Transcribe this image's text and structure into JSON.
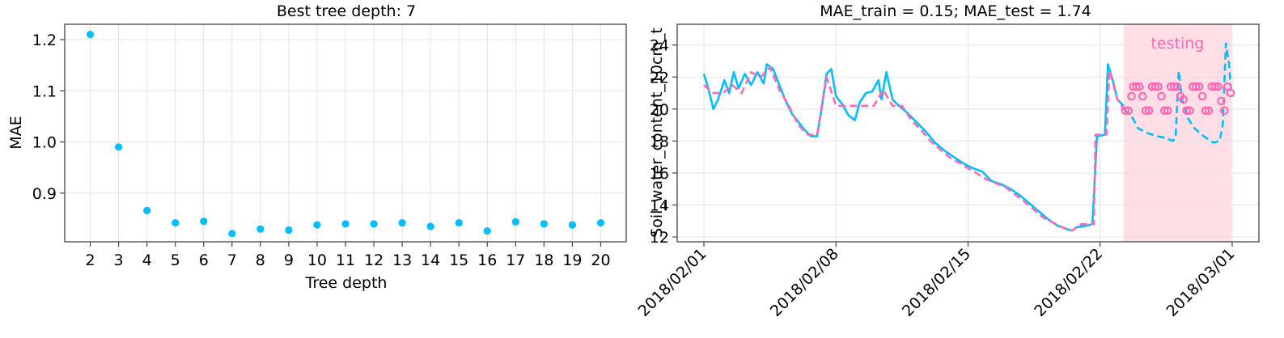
{
  "chart_data": [
    {
      "type": "scatter",
      "title": "Best tree depth: 7",
      "xlabel": "Tree depth",
      "ylabel": "MAE",
      "x": [
        2,
        3,
        4,
        5,
        6,
        7,
        8,
        9,
        10,
        11,
        12,
        13,
        14,
        15,
        16,
        17,
        18,
        19,
        20
      ],
      "y": [
        1.21,
        0.99,
        0.866,
        0.842,
        0.845,
        0.821,
        0.83,
        0.828,
        0.838,
        0.84,
        0.84,
        0.842,
        0.835,
        0.842,
        0.826,
        0.844,
        0.84,
        0.838,
        0.842
      ],
      "xticks": [
        "2",
        "3",
        "4",
        "5",
        "6",
        "7",
        "8",
        "9",
        "10",
        "11",
        "12",
        "13",
        "14",
        "15",
        "16",
        "17",
        "18",
        "19",
        "20"
      ],
      "yticks": [
        "0.9",
        "1.0",
        "1.1",
        "1.2"
      ],
      "ytick_values": [
        0.9,
        1.0,
        1.1,
        1.2
      ],
      "xlim": [
        1.1,
        20.9
      ],
      "ylim": [
        0.805,
        1.23
      ],
      "grid": true,
      "color": "#00BFFF"
    },
    {
      "type": "line",
      "title": "MAE_train = 0.15; MAE_test = 1.74",
      "xlabel": "",
      "ylabel": "Soil_water_content_10cm_t",
      "xticks": [
        "2018/02/01",
        "2018/02/08",
        "2018/02/15",
        "2018/02/22",
        "2018/03/01"
      ],
      "xtick_dates": [
        "2018-02-01",
        "2018-02-08",
        "2018-02-15",
        "2018-02-22",
        "2018-03-01"
      ],
      "yticks": [
        "12",
        "14",
        "16",
        "18",
        "20",
        "22",
        "24"
      ],
      "ytick_values": [
        12,
        14,
        16,
        18,
        20,
        22,
        24
      ],
      "xlim": [
        "2018-01-30 14:00",
        "2018-03-02 10:00"
      ],
      "ylim": [
        11.7,
        25.3
      ],
      "grid": true,
      "shaded_region": {
        "label": "testing",
        "start": "2018-02-23 06:00",
        "end": "2018-02-28 23:00",
        "color": "#FFB6C8"
      },
      "series": [
        {
          "style": "solid",
          "color": "#00BFFF",
          "points": [
            [
              "2018-02-01 00:00",
              22.2
            ],
            [
              "2018-02-01 06:00",
              21.2
            ],
            [
              "2018-02-01 12:00",
              20.0
            ],
            [
              "2018-02-01 18:00",
              20.6
            ],
            [
              "2018-02-02 02:00",
              21.8
            ],
            [
              "2018-02-02 08:00",
              21.0
            ],
            [
              "2018-02-02 14:00",
              22.3
            ],
            [
              "2018-02-02 20:00",
              21.3
            ],
            [
              "2018-02-03 04:00",
              22.2
            ],
            [
              "2018-02-03 12:00",
              21.5
            ],
            [
              "2018-02-03 20:00",
              22.3
            ],
            [
              "2018-02-04 04:00",
              21.6
            ],
            [
              "2018-02-04 08:00",
              22.8
            ],
            [
              "2018-02-04 16:00",
              22.5
            ],
            [
              "2018-02-05 00:00",
              21.5
            ],
            [
              "2018-02-05 08:00",
              20.5
            ],
            [
              "2018-02-05 16:00",
              19.7
            ],
            [
              "2018-02-06 00:00",
              19.2
            ],
            [
              "2018-02-06 08:00",
              18.7
            ],
            [
              "2018-02-06 16:00",
              18.3
            ],
            [
              "2018-02-07 00:00",
              18.3
            ],
            [
              "2018-02-07 06:00",
              20.1
            ],
            [
              "2018-02-07 12:00",
              22.2
            ],
            [
              "2018-02-07 18:00",
              22.5
            ],
            [
              "2018-02-08 00:00",
              20.8
            ],
            [
              "2018-02-08 08:00",
              20.3
            ],
            [
              "2018-02-08 16:00",
              19.6
            ],
            [
              "2018-02-09 00:00",
              19.3
            ],
            [
              "2018-02-09 06:00",
              20.4
            ],
            [
              "2018-02-09 14:00",
              21.0
            ],
            [
              "2018-02-09 22:00",
              21.1
            ],
            [
              "2018-02-10 06:00",
              21.8
            ],
            [
              "2018-02-10 10:00",
              20.6
            ],
            [
              "2018-02-10 16:00",
              22.3
            ],
            [
              "2018-02-11 00:00",
              20.6
            ],
            [
              "2018-02-11 08:00",
              20.2
            ],
            [
              "2018-02-11 18:00",
              19.8
            ],
            [
              "2018-02-12 06:00",
              19.2
            ],
            [
              "2018-02-12 18:00",
              18.6
            ],
            [
              "2018-02-13 06:00",
              17.9
            ],
            [
              "2018-02-13 18:00",
              17.4
            ],
            [
              "2018-02-14 06:00",
              17.0
            ],
            [
              "2018-02-14 18:00",
              16.6
            ],
            [
              "2018-02-15 06:00",
              16.3
            ],
            [
              "2018-02-15 18:00",
              16.1
            ],
            [
              "2018-02-16 06:00",
              15.5
            ],
            [
              "2018-02-16 18:00",
              15.3
            ],
            [
              "2018-02-17 06:00",
              15.0
            ],
            [
              "2018-02-17 18:00",
              14.6
            ],
            [
              "2018-02-18 06:00",
              14.1
            ],
            [
              "2018-02-18 18:00",
              13.6
            ],
            [
              "2018-02-19 06:00",
              13.1
            ],
            [
              "2018-02-19 18:00",
              12.7
            ],
            [
              "2018-02-20 06:00",
              12.5
            ],
            [
              "2018-02-20 12:00",
              12.4
            ],
            [
              "2018-02-20 18:00",
              12.6
            ],
            [
              "2018-02-21 06:00",
              12.7
            ],
            [
              "2018-02-21 14:00",
              12.8
            ],
            [
              "2018-02-21 16:00",
              14.5
            ],
            [
              "2018-02-21 20:00",
              18.3
            ],
            [
              "2018-02-22 06:00",
              18.4
            ],
            [
              "2018-02-22 10:00",
              22.8
            ],
            [
              "2018-02-22 16:00",
              21.8
            ],
            [
              "2018-02-22 22:00",
              20.6
            ],
            [
              "2018-02-23 06:00",
              20.2
            ]
          ]
        },
        {
          "style": "dashed",
          "color": "#00BFFF",
          "points": [
            [
              "2018-02-23 06:00",
              20.0
            ],
            [
              "2018-02-23 18:00",
              19.4
            ],
            [
              "2018-02-24 00:00",
              18.8
            ],
            [
              "2018-02-24 12:00",
              18.5
            ],
            [
              "2018-02-25 00:00",
              18.3
            ],
            [
              "2018-02-25 12:00",
              18.2
            ],
            [
              "2018-02-25 20:00",
              18.0
            ],
            [
              "2018-02-26 00:00",
              18.2
            ],
            [
              "2018-02-26 04:00",
              22.4
            ],
            [
              "2018-02-26 08:00",
              20.6
            ],
            [
              "2018-02-26 16:00",
              19.4
            ],
            [
              "2018-02-27 00:00",
              18.8
            ],
            [
              "2018-02-27 12:00",
              18.3
            ],
            [
              "2018-02-28 00:00",
              17.9
            ],
            [
              "2018-02-28 08:00",
              18.0
            ],
            [
              "2018-02-28 12:00",
              19.0
            ],
            [
              "2018-02-28 16:00",
              24.1
            ],
            [
              "2018-02-28 20:00",
              22.8
            ],
            [
              "2018-02-28 23:00",
              20.8
            ]
          ]
        },
        {
          "style": "dashed",
          "color": "#FF69B4",
          "points": [
            [
              "2018-02-01 00:00",
              21.5
            ],
            [
              "2018-02-01 12:00",
              21.0
            ],
            [
              "2018-02-02 00:00",
              21.0
            ],
            [
              "2018-02-02 12:00",
              21.5
            ],
            [
              "2018-02-03 00:00",
              21.0
            ],
            [
              "2018-02-03 12:00",
              22.3
            ],
            [
              "2018-02-04 00:00",
              22.0
            ],
            [
              "2018-02-04 12:00",
              22.6
            ],
            [
              "2018-02-05 00:00",
              21.2
            ],
            [
              "2018-02-05 12:00",
              20.2
            ],
            [
              "2018-02-06 00:00",
              19.0
            ],
            [
              "2018-02-06 12:00",
              18.4
            ],
            [
              "2018-02-07 00:00",
              18.4
            ],
            [
              "2018-02-07 12:00",
              22.0
            ],
            [
              "2018-02-08 00:00",
              20.2
            ],
            [
              "2018-02-09 00:00",
              20.2
            ],
            [
              "2018-02-10 00:00",
              20.2
            ],
            [
              "2018-02-10 12:00",
              21.2
            ],
            [
              "2018-02-11 00:00",
              20.2
            ],
            [
              "2018-02-11 12:00",
              20.2
            ],
            [
              "2018-02-12 00:00",
              19.3
            ],
            [
              "2018-02-12 12:00",
              18.7
            ],
            [
              "2018-02-13 00:00",
              18.0
            ],
            [
              "2018-02-14 00:00",
              17.0
            ],
            [
              "2018-02-15 00:00",
              16.3
            ],
            [
              "2018-02-16 00:00",
              15.6
            ],
            [
              "2018-02-17 00:00",
              15.1
            ],
            [
              "2018-02-18 00:00",
              14.2
            ],
            [
              "2018-02-19 00:00",
              13.2
            ],
            [
              "2018-02-20 00:00",
              12.6
            ],
            [
              "2018-02-20 12:00",
              12.4
            ],
            [
              "2018-02-21 00:00",
              12.8
            ],
            [
              "2018-02-21 16:00",
              12.8
            ],
            [
              "2018-02-21 18:00",
              18.4
            ],
            [
              "2018-02-22 08:00",
              18.4
            ],
            [
              "2018-02-22 12:00",
              22.4
            ],
            [
              "2018-02-22 22:00",
              20.6
            ],
            [
              "2018-02-23 06:00",
              20.0
            ]
          ]
        }
      ],
      "marker_series": {
        "style": "markers",
        "color": "#FF69B4",
        "points": [
          [
            "2018-02-23 08:00",
            19.9
          ],
          [
            "2018-02-23 12:00",
            19.9
          ],
          [
            "2018-02-23 16:00",
            20.8
          ],
          [
            "2018-02-23 18:00",
            21.4
          ],
          [
            "2018-02-23 22:00",
            21.4
          ],
          [
            "2018-02-24 02:00",
            21.4
          ],
          [
            "2018-02-24 06:00",
            20.8
          ],
          [
            "2018-02-24 10:00",
            19.9
          ],
          [
            "2018-02-24 14:00",
            19.9
          ],
          [
            "2018-02-24 18:00",
            21.4
          ],
          [
            "2018-02-24 22:00",
            21.4
          ],
          [
            "2018-02-25 02:00",
            21.4
          ],
          [
            "2018-02-25 06:00",
            20.8
          ],
          [
            "2018-02-25 10:00",
            19.9
          ],
          [
            "2018-02-25 14:00",
            19.9
          ],
          [
            "2018-02-25 18:00",
            21.4
          ],
          [
            "2018-02-25 22:00",
            21.4
          ],
          [
            "2018-02-26 02:00",
            21.4
          ],
          [
            "2018-02-26 06:00",
            20.8
          ],
          [
            "2018-02-26 10:00",
            20.6
          ],
          [
            "2018-02-26 14:00",
            19.9
          ],
          [
            "2018-02-26 18:00",
            19.9
          ],
          [
            "2018-02-26 22:00",
            21.4
          ],
          [
            "2018-02-27 02:00",
            21.4
          ],
          [
            "2018-02-27 06:00",
            21.4
          ],
          [
            "2018-02-27 10:00",
            20.8
          ],
          [
            "2018-02-27 14:00",
            19.9
          ],
          [
            "2018-02-27 18:00",
            19.9
          ],
          [
            "2018-02-27 22:00",
            21.4
          ],
          [
            "2018-02-28 02:00",
            21.4
          ],
          [
            "2018-02-28 06:00",
            21.4
          ],
          [
            "2018-02-28 10:00",
            20.5
          ],
          [
            "2018-02-28 14:00",
            19.9
          ],
          [
            "2018-02-28 18:00",
            21.4
          ],
          [
            "2018-02-28 22:00",
            21.0
          ]
        ]
      }
    }
  ]
}
